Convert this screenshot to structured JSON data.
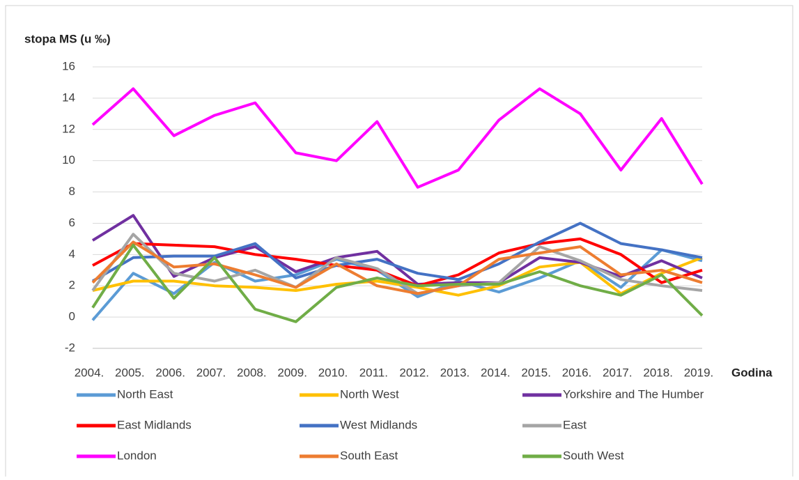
{
  "chart_data": {
    "type": "line",
    "y_label": "stopa MS (u ‰)",
    "x_label": "Godina",
    "categories": [
      "2004.",
      "2005.",
      "2006.",
      "2007.",
      "2008.",
      "2009.",
      "2010.",
      "2011.",
      "2012.",
      "2013.",
      "2014.",
      "2015.",
      "2016.",
      "2017.",
      "2018.",
      "2019."
    ],
    "series": [
      {
        "name": "North East",
        "color": "#5b9bd5",
        "values": [
          -0.2,
          2.8,
          1.5,
          3.5,
          2.3,
          2.7,
          3.7,
          3.0,
          1.3,
          2.3,
          1.6,
          2.5,
          3.6,
          1.9,
          4.3,
          3.6
        ]
      },
      {
        "name": "North West",
        "color": "#ffc000",
        "values": [
          1.7,
          2.3,
          2.3,
          2.0,
          1.9,
          1.7,
          2.1,
          2.3,
          1.9,
          1.4,
          2.0,
          3.2,
          3.5,
          1.5,
          2.8,
          3.8
        ]
      },
      {
        "name": "Yorkshire and The Humber",
        "color": "#7030a0",
        "values": [
          4.9,
          6.5,
          2.6,
          3.8,
          4.5,
          2.9,
          3.8,
          4.2,
          2.1,
          2.2,
          2.2,
          3.8,
          3.5,
          2.6,
          3.6,
          2.5
        ]
      },
      {
        "name": "East Midlands",
        "color": "#ff0000",
        "values": [
          3.3,
          4.7,
          4.6,
          4.5,
          4.0,
          3.7,
          3.3,
          3.0,
          2.0,
          2.7,
          4.1,
          4.7,
          5.0,
          4.0,
          2.2,
          3.0
        ]
      },
      {
        "name": "West Midlands",
        "color": "#4472c4",
        "values": [
          2.3,
          3.8,
          3.9,
          3.9,
          4.7,
          2.5,
          3.3,
          3.7,
          2.8,
          2.4,
          3.4,
          4.8,
          6.0,
          4.7,
          4.3,
          3.8
        ]
      },
      {
        "name": "East",
        "color": "#a5a5a5",
        "values": [
          1.7,
          5.3,
          2.8,
          2.3,
          3.0,
          1.9,
          3.8,
          3.1,
          1.5,
          2.0,
          2.2,
          4.5,
          3.6,
          2.4,
          2.0,
          1.7
        ]
      },
      {
        "name": "London",
        "color": "#ff00ff",
        "values": [
          12.3,
          14.6,
          11.6,
          12.9,
          13.7,
          10.5,
          10.0,
          12.5,
          8.3,
          9.4,
          12.6,
          14.6,
          13.0,
          9.4,
          12.7,
          8.5
        ]
      },
      {
        "name": "South East",
        "color": "#ed7d31",
        "values": [
          2.2,
          4.8,
          3.2,
          3.4,
          2.7,
          1.9,
          3.4,
          2.0,
          1.5,
          2.0,
          3.7,
          4.1,
          4.5,
          2.7,
          3.0,
          2.2
        ]
      },
      {
        "name": "South West",
        "color": "#70ad47",
        "values": [
          0.6,
          4.6,
          1.2,
          3.8,
          0.5,
          -0.3,
          1.9,
          2.5,
          2.0,
          2.1,
          2.1,
          2.9,
          2.0,
          1.4,
          2.7,
          0.1
        ]
      }
    ],
    "ylim": [
      -2,
      16
    ],
    "yticks": [
      -2,
      0,
      2,
      4,
      6,
      8,
      10,
      12,
      14,
      16
    ],
    "grid": true,
    "legend": "bottom"
  }
}
